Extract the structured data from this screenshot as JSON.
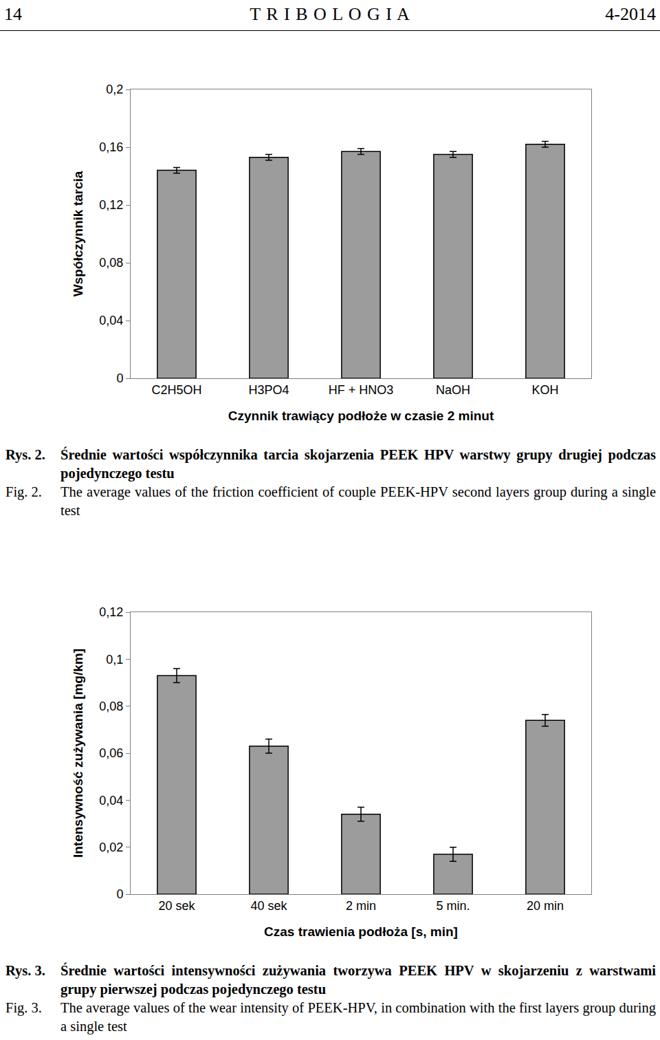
{
  "header": {
    "page": "14",
    "journal": "T R I B O L O G I A",
    "issue": "4-2014"
  },
  "chart_data": [
    {
      "type": "bar",
      "xlabel": "Czynnik trawiący podłoże w czasie 2 minut",
      "ylabel": "Współczynnik tarcia",
      "categories": [
        "C2H5OH",
        "H3PO4",
        "HF + HNO3",
        "NaOH",
        "KOH"
      ],
      "values": [
        0.144,
        0.153,
        0.157,
        0.155,
        0.162
      ],
      "errors": [
        0.002,
        0.002,
        0.002,
        0.002,
        0.002
      ],
      "color": "#9c9c9c",
      "ylim": [
        0,
        0.2
      ],
      "yticks": [
        0,
        {
          "value": 0.04,
          "label": "0,04"
        },
        {
          "value": 0.08,
          "label": "0,08"
        },
        {
          "value": 0.12,
          "label": "0,12"
        },
        {
          "value": 0.16,
          "label": "0,16"
        },
        {
          "value": 0.2,
          "label": "0,2"
        }
      ],
      "grid": false
    },
    {
      "type": "bar",
      "xlabel": "Czas trawienia podłoża [s, min]",
      "ylabel": "Intensywność zużywania [mg/km]",
      "categories": [
        "20 sek",
        "40 sek",
        "2 min",
        "5 min.",
        "20 min"
      ],
      "values": [
        0.093,
        0.063,
        0.034,
        0.017,
        0.074
      ],
      "errors": [
        0.003,
        0.003,
        0.003,
        0.003,
        0.0025
      ],
      "color": "#9c9c9c",
      "ylim": [
        0,
        0.12
      ],
      "yticks": [
        0,
        {
          "value": 0.02,
          "label": "0,02"
        },
        {
          "value": 0.04,
          "label": "0,04"
        },
        {
          "value": 0.06,
          "label": "0,06"
        },
        {
          "value": 0.08,
          "label": "0,08"
        },
        {
          "value": 0.1,
          "label": "0,1"
        },
        {
          "value": 0.12,
          "label": "0,12"
        }
      ],
      "grid": false
    }
  ],
  "captions": [
    {
      "pl_label": "Rys. 2.",
      "pl": "Średnie wartości współczynnika tarcia skojarzenia PEEK HPV warstwy grupy drugiej podczas pojedynczego testu",
      "en_label": "Fig. 2.",
      "en": "The average values of the friction coefficient of couple PEEK-HPV second layers group during a single test"
    },
    {
      "pl_label": "Rys. 3.",
      "pl": "Średnie wartości intensywności zużywania tworzywa PEEK HPV w skojarzeniu z warstwami grupy pierwszej podczas pojedynczego testu",
      "en_label": "Fig. 3.",
      "en": "The average values of the wear intensity of PEEK-HPV, in combination with the first layers group during a single test"
    }
  ]
}
